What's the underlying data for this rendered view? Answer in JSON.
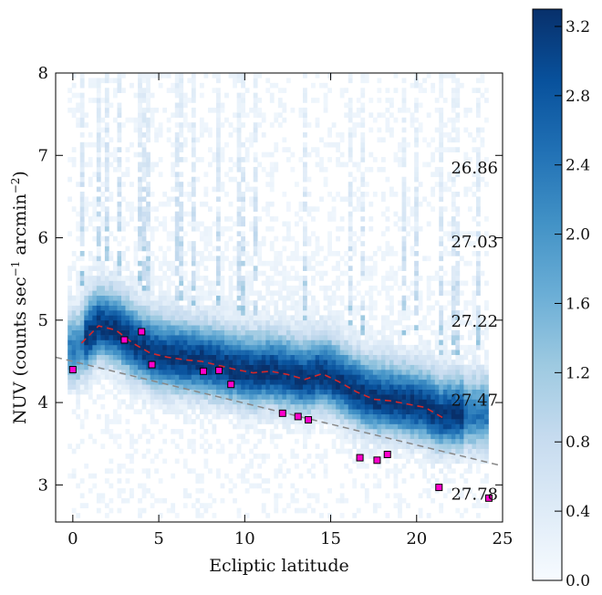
{
  "chart_data": {
    "type": "heatmap",
    "xlabel": "Ecliptic latitude",
    "ylabel": "NUV (counts sec",
    "ylabel_sup1": "−1",
    "ylabel_mid": " arcmin",
    "ylabel_sup2": "−2",
    "ylabel_end": ")",
    "xlim": [
      -1,
      25
    ],
    "ylim": [
      2.55,
      8
    ],
    "xticks": [
      0,
      5,
      10,
      15,
      20,
      25
    ],
    "yticks": [
      3,
      4,
      5,
      6,
      7,
      8
    ],
    "colorbar": {
      "range": [
        0.0,
        3.3
      ],
      "ticks": [
        "0.0",
        "0.4",
        "0.8",
        "1.2",
        "1.6",
        "2.0",
        "2.4",
        "2.8",
        "3.2"
      ],
      "colormap": [
        "#f7fbff",
        "#deebf7",
        "#c6dbef",
        "#9ecae1",
        "#6baed6",
        "#4292c6",
        "#2171b5",
        "#08519c",
        "#08306b"
      ]
    },
    "magnitude_labels": [
      {
        "text": "26.86",
        "y": 6.86
      },
      {
        "text": "27.03",
        "y": 5.96
      },
      {
        "text": "27.22",
        "y": 5.0
      },
      {
        "text": "27.47",
        "y": 4.04
      },
      {
        "text": "27.78",
        "y": 2.9
      }
    ],
    "median_curve": {
      "color": "#d62728",
      "x": [
        0.5,
        1.5,
        2.5,
        3.5,
        4.5,
        5.5,
        6.5,
        7.5,
        8.5,
        9.5,
        10.5,
        11.5,
        12.5,
        13.5,
        14.5,
        15.5,
        16.5,
        17.5,
        18.5,
        19.5,
        20.5,
        21.5
      ],
      "y": [
        4.72,
        4.93,
        4.88,
        4.72,
        4.6,
        4.55,
        4.52,
        4.5,
        4.45,
        4.4,
        4.36,
        4.38,
        4.34,
        4.28,
        4.35,
        4.25,
        4.13,
        4.04,
        4.02,
        3.98,
        3.94,
        3.82
      ]
    },
    "fit_line": {
      "color": "#888888",
      "x": [
        -1,
        25
      ],
      "y": [
        4.55,
        3.23
      ]
    },
    "points": {
      "color": "#ff00cc",
      "x": [
        0.0,
        3.0,
        4.0,
        4.6,
        7.6,
        8.5,
        9.2,
        12.2,
        13.1,
        13.7,
        16.7,
        17.7,
        18.3,
        21.3,
        24.2
      ],
      "y": [
        4.4,
        4.76,
        4.86,
        4.46,
        4.38,
        4.39,
        4.22,
        3.87,
        3.83,
        3.79,
        3.33,
        3.3,
        3.37,
        2.97,
        2.84
      ]
    }
  }
}
